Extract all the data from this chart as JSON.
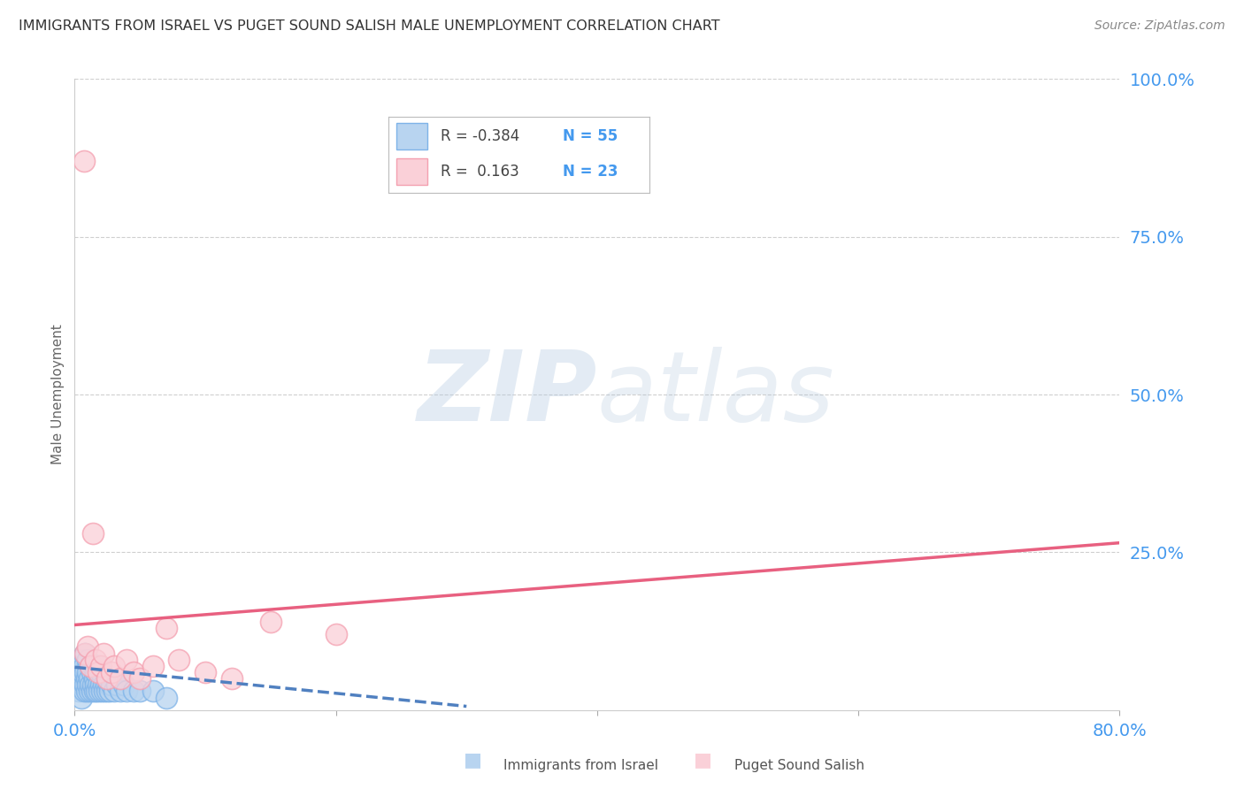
{
  "title": "IMMIGRANTS FROM ISRAEL VS PUGET SOUND SALISH MALE UNEMPLOYMENT CORRELATION CHART",
  "source": "Source: ZipAtlas.com",
  "ylabel": "Male Unemployment",
  "legend_label1": "Immigrants from Israel",
  "legend_label2": "Puget Sound Salish",
  "watermark_zip": "ZIP",
  "watermark_atlas": "atlas",
  "blue_color": "#7EB3E8",
  "blue_fill": "#B8D4F0",
  "pink_color": "#F4A0B0",
  "pink_fill": "#FAD0D8",
  "blue_line_color": "#5080C0",
  "pink_line_color": "#E86080",
  "blue_scatter_x": [
    0.002,
    0.003,
    0.003,
    0.004,
    0.004,
    0.005,
    0.005,
    0.005,
    0.006,
    0.006,
    0.007,
    0.007,
    0.008,
    0.008,
    0.008,
    0.009,
    0.009,
    0.01,
    0.01,
    0.01,
    0.011,
    0.011,
    0.012,
    0.012,
    0.013,
    0.013,
    0.014,
    0.014,
    0.015,
    0.015,
    0.016,
    0.016,
    0.017,
    0.018,
    0.018,
    0.019,
    0.02,
    0.02,
    0.021,
    0.022,
    0.023,
    0.024,
    0.025,
    0.026,
    0.027,
    0.028,
    0.03,
    0.032,
    0.035,
    0.038,
    0.04,
    0.045,
    0.05,
    0.06,
    0.07
  ],
  "blue_scatter_y": [
    0.04,
    0.03,
    0.06,
    0.05,
    0.08,
    0.02,
    0.05,
    0.07,
    0.04,
    0.06,
    0.03,
    0.07,
    0.04,
    0.06,
    0.09,
    0.03,
    0.05,
    0.04,
    0.06,
    0.08,
    0.03,
    0.05,
    0.04,
    0.07,
    0.03,
    0.06,
    0.04,
    0.07,
    0.03,
    0.05,
    0.04,
    0.06,
    0.03,
    0.04,
    0.07,
    0.03,
    0.04,
    0.06,
    0.03,
    0.04,
    0.03,
    0.04,
    0.03,
    0.04,
    0.03,
    0.04,
    0.03,
    0.04,
    0.03,
    0.04,
    0.03,
    0.03,
    0.03,
    0.03,
    0.02
  ],
  "pink_scatter_x": [
    0.007,
    0.008,
    0.01,
    0.012,
    0.014,
    0.016,
    0.018,
    0.02,
    0.022,
    0.025,
    0.028,
    0.03,
    0.035,
    0.04,
    0.045,
    0.05,
    0.06,
    0.07,
    0.08,
    0.1,
    0.12,
    0.15,
    0.2
  ],
  "pink_scatter_y": [
    0.87,
    0.09,
    0.1,
    0.07,
    0.28,
    0.08,
    0.06,
    0.07,
    0.09,
    0.05,
    0.06,
    0.07,
    0.05,
    0.08,
    0.06,
    0.05,
    0.07,
    0.13,
    0.08,
    0.06,
    0.05,
    0.14,
    0.12
  ],
  "blue_trend_x": [
    0.0,
    0.3
  ],
  "blue_trend_y": [
    0.068,
    0.006
  ],
  "pink_trend_x": [
    0.0,
    0.8
  ],
  "pink_trend_y": [
    0.135,
    0.265
  ],
  "xlim": [
    0.0,
    0.8
  ],
  "ylim": [
    0.0,
    1.0
  ],
  "background_color": "#FFFFFF",
  "grid_color": "#BBBBBB",
  "right_label_color": "#4499EE",
  "bottom_label_color": "#4499EE"
}
